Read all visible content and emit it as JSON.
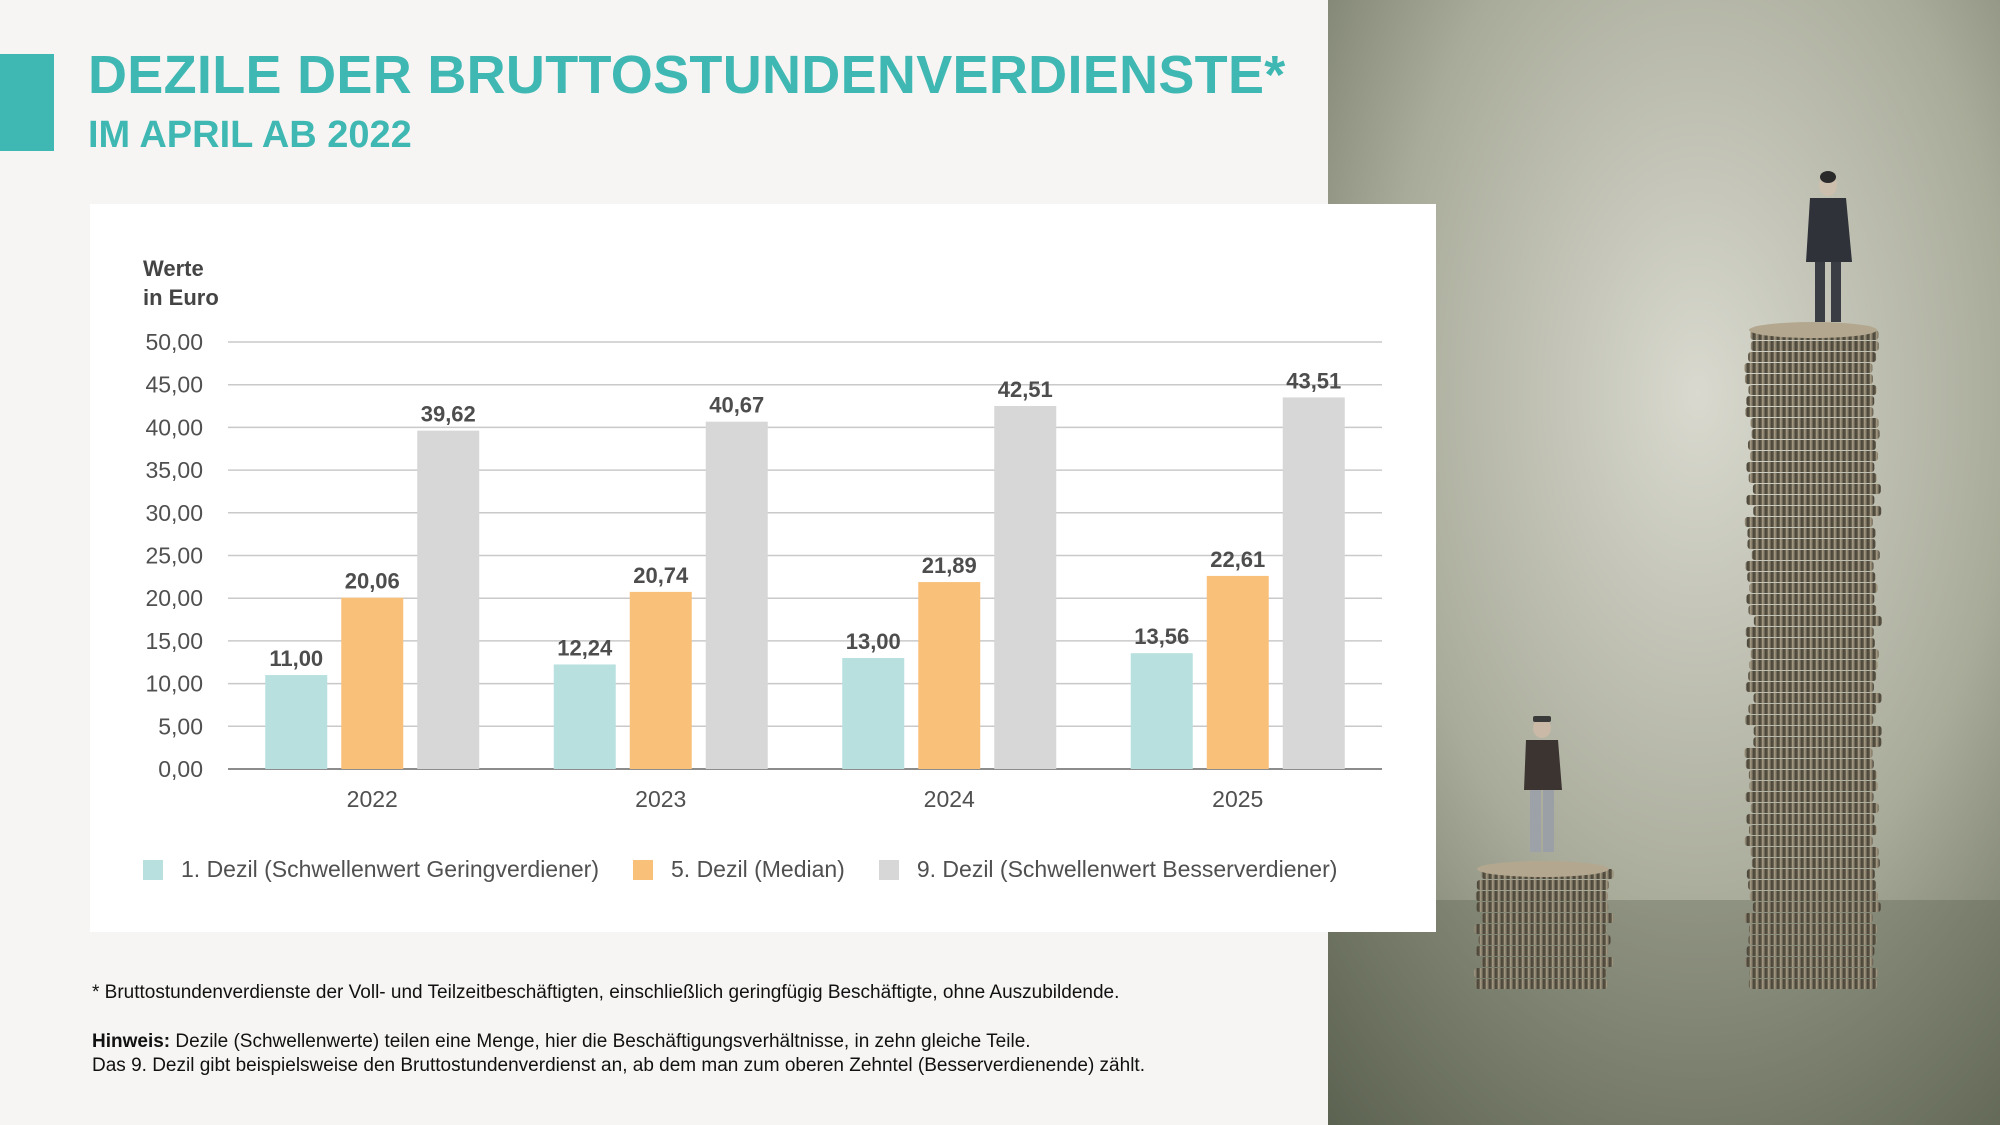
{
  "header": {
    "title": "DEZILE DER BRUTTOSTUNDENVERDIENSTE*",
    "subtitle": "IM APRIL AB 2022"
  },
  "colors": {
    "accent": "#3fb8b3",
    "dezil1": "#b7e0df",
    "dezil5": "#f9c07a",
    "dezil9": "#d7d7d7"
  },
  "chart_data": {
    "type": "bar",
    "ylabel_lines": [
      "Werte",
      "in Euro"
    ],
    "categories": [
      "2022",
      "2023",
      "2024",
      "2025"
    ],
    "ylim": [
      0,
      50
    ],
    "yticks": [
      "0,00",
      "5,00",
      "10,00",
      "15,00",
      "20,00",
      "25,00",
      "30,00",
      "35,00",
      "40,00",
      "45,00",
      "50,00"
    ],
    "grid": true,
    "legend_position": "bottom",
    "series": [
      {
        "name": "1. Dezil (Schwellenwert Geringverdiener)",
        "values": [
          11.0,
          12.24,
          13.0,
          13.56
        ],
        "labels": [
          "11,00",
          "12,24",
          "13,00",
          "13,56"
        ],
        "color": "#b7e0df"
      },
      {
        "name": "5. Dezil (Median)",
        "values": [
          20.06,
          20.74,
          21.89,
          22.61
        ],
        "labels": [
          "20,06",
          "20,74",
          "21,89",
          "22,61"
        ],
        "color": "#f9c07a"
      },
      {
        "name": "9. Dezil (Schwellenwert Besserverdiener)",
        "values": [
          39.62,
          40.67,
          42.51,
          43.51
        ],
        "labels": [
          "39,62",
          "40,67",
          "42,51",
          "43,51"
        ],
        "color": "#d7d7d7"
      }
    ]
  },
  "footnote": "* Bruttostundenverdienste der Voll- und Teilzeitbeschäftigten, einschließlich geringfügig Beschäftigte, ohne Auszubildende.",
  "hint": {
    "label": "Hinweis:",
    "line1": " Dezile (Schwellenwerte) teilen eine Menge, hier die Beschäftigungsverhältnisse, in zehn gleiche Teile.",
    "line2": "Das 9. Dezil gibt beispielsweise den Bruttostundenverdienst an, ab dem man zum oberen Zehntel (Besserverdienende) zählt."
  }
}
